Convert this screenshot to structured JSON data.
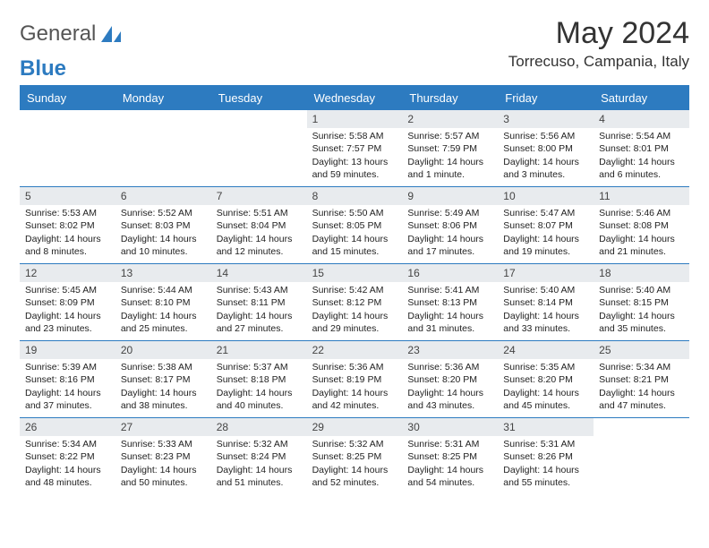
{
  "brand": {
    "part1": "General",
    "part2": "Blue"
  },
  "colors": {
    "accent": "#2d7bc0",
    "header_bg": "#2d7bc0",
    "daynum_bg": "#e8ebee",
    "text": "#222222",
    "background": "#ffffff"
  },
  "title": "May 2024",
  "location": "Torrecuso, Campania, Italy",
  "day_headers": [
    "Sunday",
    "Monday",
    "Tuesday",
    "Wednesday",
    "Thursday",
    "Friday",
    "Saturday"
  ],
  "layout": {
    "weeks": 5,
    "cols": 7,
    "cell_font_size_pt": 8,
    "header_font_size_pt": 10
  },
  "weeks": [
    [
      {
        "empty": true
      },
      {
        "empty": true
      },
      {
        "empty": true
      },
      {
        "n": "1",
        "sunrise": "Sunrise: 5:58 AM",
        "sunset": "Sunset: 7:57 PM",
        "daylight": "Daylight: 13 hours and 59 minutes."
      },
      {
        "n": "2",
        "sunrise": "Sunrise: 5:57 AM",
        "sunset": "Sunset: 7:59 PM",
        "daylight": "Daylight: 14 hours and 1 minute."
      },
      {
        "n": "3",
        "sunrise": "Sunrise: 5:56 AM",
        "sunset": "Sunset: 8:00 PM",
        "daylight": "Daylight: 14 hours and 3 minutes."
      },
      {
        "n": "4",
        "sunrise": "Sunrise: 5:54 AM",
        "sunset": "Sunset: 8:01 PM",
        "daylight": "Daylight: 14 hours and 6 minutes."
      }
    ],
    [
      {
        "n": "5",
        "sunrise": "Sunrise: 5:53 AM",
        "sunset": "Sunset: 8:02 PM",
        "daylight": "Daylight: 14 hours and 8 minutes."
      },
      {
        "n": "6",
        "sunrise": "Sunrise: 5:52 AM",
        "sunset": "Sunset: 8:03 PM",
        "daylight": "Daylight: 14 hours and 10 minutes."
      },
      {
        "n": "7",
        "sunrise": "Sunrise: 5:51 AM",
        "sunset": "Sunset: 8:04 PM",
        "daylight": "Daylight: 14 hours and 12 minutes."
      },
      {
        "n": "8",
        "sunrise": "Sunrise: 5:50 AM",
        "sunset": "Sunset: 8:05 PM",
        "daylight": "Daylight: 14 hours and 15 minutes."
      },
      {
        "n": "9",
        "sunrise": "Sunrise: 5:49 AM",
        "sunset": "Sunset: 8:06 PM",
        "daylight": "Daylight: 14 hours and 17 minutes."
      },
      {
        "n": "10",
        "sunrise": "Sunrise: 5:47 AM",
        "sunset": "Sunset: 8:07 PM",
        "daylight": "Daylight: 14 hours and 19 minutes."
      },
      {
        "n": "11",
        "sunrise": "Sunrise: 5:46 AM",
        "sunset": "Sunset: 8:08 PM",
        "daylight": "Daylight: 14 hours and 21 minutes."
      }
    ],
    [
      {
        "n": "12",
        "sunrise": "Sunrise: 5:45 AM",
        "sunset": "Sunset: 8:09 PM",
        "daylight": "Daylight: 14 hours and 23 minutes."
      },
      {
        "n": "13",
        "sunrise": "Sunrise: 5:44 AM",
        "sunset": "Sunset: 8:10 PM",
        "daylight": "Daylight: 14 hours and 25 minutes."
      },
      {
        "n": "14",
        "sunrise": "Sunrise: 5:43 AM",
        "sunset": "Sunset: 8:11 PM",
        "daylight": "Daylight: 14 hours and 27 minutes."
      },
      {
        "n": "15",
        "sunrise": "Sunrise: 5:42 AM",
        "sunset": "Sunset: 8:12 PM",
        "daylight": "Daylight: 14 hours and 29 minutes."
      },
      {
        "n": "16",
        "sunrise": "Sunrise: 5:41 AM",
        "sunset": "Sunset: 8:13 PM",
        "daylight": "Daylight: 14 hours and 31 minutes."
      },
      {
        "n": "17",
        "sunrise": "Sunrise: 5:40 AM",
        "sunset": "Sunset: 8:14 PM",
        "daylight": "Daylight: 14 hours and 33 minutes."
      },
      {
        "n": "18",
        "sunrise": "Sunrise: 5:40 AM",
        "sunset": "Sunset: 8:15 PM",
        "daylight": "Daylight: 14 hours and 35 minutes."
      }
    ],
    [
      {
        "n": "19",
        "sunrise": "Sunrise: 5:39 AM",
        "sunset": "Sunset: 8:16 PM",
        "daylight": "Daylight: 14 hours and 37 minutes."
      },
      {
        "n": "20",
        "sunrise": "Sunrise: 5:38 AM",
        "sunset": "Sunset: 8:17 PM",
        "daylight": "Daylight: 14 hours and 38 minutes."
      },
      {
        "n": "21",
        "sunrise": "Sunrise: 5:37 AM",
        "sunset": "Sunset: 8:18 PM",
        "daylight": "Daylight: 14 hours and 40 minutes."
      },
      {
        "n": "22",
        "sunrise": "Sunrise: 5:36 AM",
        "sunset": "Sunset: 8:19 PM",
        "daylight": "Daylight: 14 hours and 42 minutes."
      },
      {
        "n": "23",
        "sunrise": "Sunrise: 5:36 AM",
        "sunset": "Sunset: 8:20 PM",
        "daylight": "Daylight: 14 hours and 43 minutes."
      },
      {
        "n": "24",
        "sunrise": "Sunrise: 5:35 AM",
        "sunset": "Sunset: 8:20 PM",
        "daylight": "Daylight: 14 hours and 45 minutes."
      },
      {
        "n": "25",
        "sunrise": "Sunrise: 5:34 AM",
        "sunset": "Sunset: 8:21 PM",
        "daylight": "Daylight: 14 hours and 47 minutes."
      }
    ],
    [
      {
        "n": "26",
        "sunrise": "Sunrise: 5:34 AM",
        "sunset": "Sunset: 8:22 PM",
        "daylight": "Daylight: 14 hours and 48 minutes."
      },
      {
        "n": "27",
        "sunrise": "Sunrise: 5:33 AM",
        "sunset": "Sunset: 8:23 PM",
        "daylight": "Daylight: 14 hours and 50 minutes."
      },
      {
        "n": "28",
        "sunrise": "Sunrise: 5:32 AM",
        "sunset": "Sunset: 8:24 PM",
        "daylight": "Daylight: 14 hours and 51 minutes."
      },
      {
        "n": "29",
        "sunrise": "Sunrise: 5:32 AM",
        "sunset": "Sunset: 8:25 PM",
        "daylight": "Daylight: 14 hours and 52 minutes."
      },
      {
        "n": "30",
        "sunrise": "Sunrise: 5:31 AM",
        "sunset": "Sunset: 8:25 PM",
        "daylight": "Daylight: 14 hours and 54 minutes."
      },
      {
        "n": "31",
        "sunrise": "Sunrise: 5:31 AM",
        "sunset": "Sunset: 8:26 PM",
        "daylight": "Daylight: 14 hours and 55 minutes."
      },
      {
        "empty": true
      }
    ]
  ]
}
